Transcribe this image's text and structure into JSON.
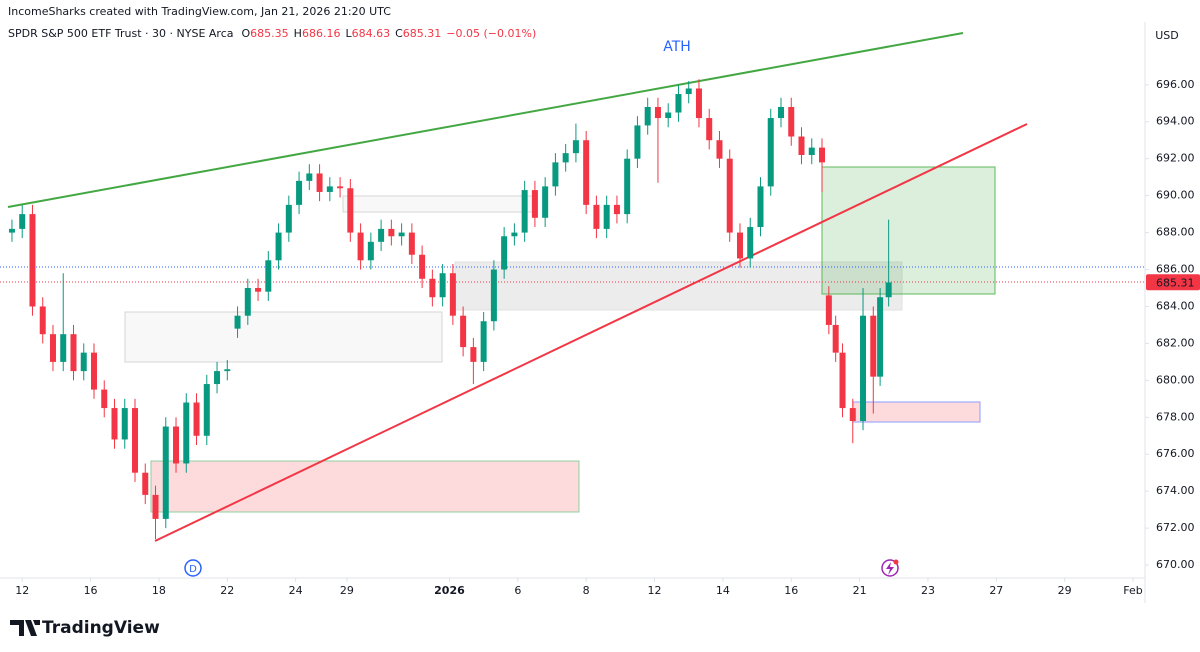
{
  "header": {
    "attribution": "IncomeSharks created with TradingView.com, Jan 21, 2026 21:20 UTC"
  },
  "chart_data": {
    "type": "candlestick",
    "title": "SPDR S&P 500 ETF Trust · 30 · NYSE Arca",
    "ohlc_labels": [
      "O",
      "H",
      "L",
      "C"
    ],
    "ohlc": [
      685.35,
      686.16,
      684.63,
      685.31
    ],
    "change": "−0.05 (−0.01%)",
    "currency": "USD",
    "annotation": "ATH",
    "dividend_marker": "D",
    "up_color": "#089981",
    "down_color": "#f23645",
    "x": [
      -0.3,
      0,
      0.3,
      0.6,
      0.9,
      1.2,
      1.5,
      1.8,
      2.1,
      2.4,
      2.7,
      3,
      3.3,
      3.6,
      3.9,
      4.2,
      4.5,
      4.8,
      5.1,
      5.4,
      5.7,
      6,
      6.3,
      6.6,
      6.9,
      7.2,
      7.5,
      7.8,
      8.1,
      8.4,
      8.7,
      9,
      9.3,
      9.6,
      9.9,
      10.2,
      10.5,
      10.8,
      11.1,
      11.4,
      11.7,
      12,
      12.3,
      12.6,
      12.9,
      13.2,
      13.5,
      13.8,
      14.1,
      14.4,
      14.7,
      15,
      15.3,
      15.6,
      15.9,
      16.2,
      16.5,
      16.8,
      17.1,
      17.4,
      17.7,
      18,
      18.3,
      18.6,
      18.9,
      19.2,
      19.5,
      19.8,
      20.1,
      20.4,
      20.7,
      21,
      21.3,
      21.6,
      21.9,
      22.2,
      22.5,
      22.8,
      23.1,
      23.4,
      23.6,
      23.8,
      24,
      24.3,
      24.6,
      24.9,
      25.1,
      25.35
    ],
    "open": [
      688.0,
      688.2,
      689.0,
      684.0,
      682.5,
      681.0,
      682.5,
      680.5,
      681.5,
      679.5,
      678.5,
      676.8,
      678.5,
      675.0,
      673.8,
      672.5,
      677.5,
      675.5,
      678.8,
      677.0,
      679.8,
      680.5,
      682.8,
      683.5,
      685.0,
      684.8,
      686.5,
      688.0,
      689.5,
      690.8,
      691.2,
      690.2,
      690.5,
      690.4,
      688.0,
      686.5,
      687.5,
      688.2,
      687.8,
      688.0,
      686.8,
      685.5,
      684.5,
      685.8,
      683.5,
      681.8,
      681.0,
      683.2,
      686.0,
      687.8,
      688.0,
      690.3,
      688.8,
      690.5,
      691.8,
      692.3,
      693.0,
      689.5,
      688.2,
      689.5,
      689.0,
      692.0,
      693.8,
      694.8,
      694.2,
      694.5,
      695.5,
      695.8,
      694.2,
      693.0,
      692.0,
      688.0,
      686.6,
      688.3,
      690.5,
      694.2,
      694.8,
      693.2,
      692.2,
      692.6,
      684.6,
      683.0,
      681.5,
      678.5,
      677.8,
      683.5,
      680.2,
      684.5
    ],
    "high": [
      688.7,
      689.5,
      689.5,
      684.5,
      683.0,
      685.8,
      683.0,
      682.0,
      682.0,
      680.0,
      679.0,
      679.0,
      679.0,
      675.5,
      674.3,
      678.0,
      678.0,
      679.3,
      679.3,
      680.3,
      681.0,
      681.1,
      684.0,
      685.5,
      685.5,
      687.0,
      688.5,
      690.0,
      691.3,
      691.7,
      691.7,
      691.0,
      691.0,
      690.9,
      688.5,
      688.0,
      688.7,
      688.7,
      688.5,
      688.5,
      687.3,
      686.0,
      686.3,
      686.3,
      684.0,
      682.3,
      683.7,
      686.5,
      688.3,
      688.5,
      690.8,
      690.8,
      691.0,
      692.3,
      692.8,
      693.9,
      693.5,
      690.0,
      690.0,
      690.0,
      692.5,
      694.3,
      695.3,
      695.3,
      695.0,
      696.0,
      696.2,
      696.3,
      694.7,
      693.5,
      692.5,
      688.5,
      688.8,
      691.0,
      694.7,
      695.3,
      695.3,
      693.7,
      693.1,
      693.1,
      685.1,
      683.5,
      682.0,
      679.0,
      685.0,
      684.0,
      685.0,
      688.7
    ],
    "low": [
      687.5,
      687.7,
      683.5,
      682.0,
      680.5,
      680.5,
      680.0,
      680.0,
      679.0,
      678.0,
      676.3,
      676.3,
      674.5,
      673.3,
      671.4,
      672.0,
      675.0,
      675.0,
      676.5,
      676.5,
      679.3,
      680.0,
      682.3,
      683.0,
      684.3,
      684.3,
      686.0,
      687.5,
      689.0,
      690.3,
      689.7,
      689.7,
      689.9,
      687.5,
      686.0,
      686.0,
      687.0,
      687.3,
      687.3,
      686.3,
      685.0,
      684.0,
      684.0,
      683.0,
      681.3,
      679.8,
      680.5,
      682.7,
      685.5,
      687.3,
      687.5,
      688.3,
      688.3,
      690.0,
      691.3,
      691.8,
      689.0,
      687.7,
      687.7,
      688.5,
      688.5,
      691.5,
      693.3,
      690.7,
      693.7,
      694.0,
      695.0,
      693.7,
      692.5,
      691.5,
      687.5,
      686.1,
      686.1,
      687.8,
      690.0,
      693.7,
      692.7,
      691.7,
      691.7,
      690.2,
      682.5,
      681.0,
      678.0,
      676.6,
      677.3,
      678.2,
      679.7,
      684.0
    ],
    "close": [
      688.2,
      689.0,
      684.0,
      682.5,
      681.0,
      682.5,
      680.5,
      681.5,
      679.5,
      678.5,
      676.8,
      678.5,
      675.0,
      673.8,
      672.5,
      677.5,
      675.5,
      678.8,
      677.0,
      679.8,
      680.5,
      680.6,
      683.5,
      685.0,
      684.8,
      686.5,
      688.0,
      689.5,
      690.8,
      691.2,
      690.2,
      690.5,
      690.4,
      688.0,
      686.5,
      687.5,
      688.2,
      687.8,
      688.0,
      686.8,
      685.5,
      684.5,
      685.8,
      683.5,
      681.8,
      681.0,
      683.2,
      686.0,
      687.8,
      688.0,
      690.3,
      688.8,
      690.5,
      691.8,
      692.3,
      693.0,
      689.5,
      688.2,
      689.5,
      689.0,
      692.0,
      693.8,
      694.8,
      694.2,
      694.5,
      695.5,
      695.8,
      694.2,
      693.0,
      692.0,
      688.0,
      686.6,
      688.3,
      690.5,
      694.2,
      694.8,
      693.2,
      692.2,
      692.6,
      691.8,
      683.0,
      681.5,
      678.5,
      677.8,
      683.5,
      680.2,
      684.5,
      685.3
    ],
    "xlim": [
      -0.65,
      32.85
    ],
    "ylim": [
      669.3,
      699.4
    ],
    "xticks": [
      {
        "value": 0,
        "label": "12"
      },
      {
        "value": 2,
        "label": "16"
      },
      {
        "value": 4,
        "label": "18"
      },
      {
        "value": 6,
        "label": "22"
      },
      {
        "value": 8,
        "label": "24"
      },
      {
        "value": 9.5,
        "label": "29"
      },
      {
        "value": 12.5,
        "label": "2026",
        "bold": true
      },
      {
        "value": 14.5,
        "label": "6"
      },
      {
        "value": 16.5,
        "label": "8"
      },
      {
        "value": 18.5,
        "label": "12"
      },
      {
        "value": 20.5,
        "label": "14"
      },
      {
        "value": 22.5,
        "label": "16"
      },
      {
        "value": 24.5,
        "label": "21"
      },
      {
        "value": 26.5,
        "label": "23"
      },
      {
        "value": 28.5,
        "label": "27"
      },
      {
        "value": 30.5,
        "label": "29"
      },
      {
        "value": 32.5,
        "label": "Feb"
      }
    ],
    "yticks": [
      {
        "value": 670,
        "label": "670.00"
      },
      {
        "value": 672,
        "label": "672.00"
      },
      {
        "value": 674,
        "label": "674.00"
      },
      {
        "value": 676,
        "label": "676.00"
      },
      {
        "value": 678,
        "label": "678.00"
      },
      {
        "value": 680,
        "label": "680.00"
      },
      {
        "value": 682,
        "label": "682.00"
      },
      {
        "value": 684,
        "label": "684.00"
      },
      {
        "value": 686,
        "label": "686.00"
      },
      {
        "value": 688,
        "label": "688.00"
      },
      {
        "value": 690,
        "label": "690.00"
      },
      {
        "value": 692,
        "label": "692.00"
      },
      {
        "value": 694,
        "label": "694.00"
      },
      {
        "value": 696,
        "label": "696.00"
      }
    ]
  },
  "footer": {
    "brand": "TradingView"
  }
}
